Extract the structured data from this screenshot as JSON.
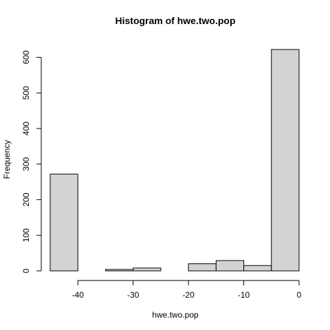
{
  "chart_data": {
    "type": "bar",
    "title": "Histogram of hwe.two.pop",
    "xlabel": "hwe.two.pop",
    "ylabel": "Frequency",
    "bins": [
      {
        "x0": -45,
        "x1": -40,
        "count": 272
      },
      {
        "x0": -40,
        "x1": -35,
        "count": 0
      },
      {
        "x0": -35,
        "x1": -30,
        "count": 4
      },
      {
        "x0": -30,
        "x1": -25,
        "count": 8
      },
      {
        "x0": -25,
        "x1": -20,
        "count": 0
      },
      {
        "x0": -20,
        "x1": -15,
        "count": 20
      },
      {
        "x0": -15,
        "x1": -10,
        "count": 29
      },
      {
        "x0": -10,
        "x1": -5,
        "count": 15
      },
      {
        "x0": -5,
        "x1": 0,
        "count": 622
      }
    ],
    "xticks": [
      -40,
      -30,
      -20,
      -10,
      0
    ],
    "yticks": [
      0,
      100,
      200,
      300,
      400,
      500,
      600
    ],
    "xlim": [
      -45,
      0
    ],
    "ylim": [
      0,
      622
    ],
    "grid": false,
    "bar_color": "#d3d3d3"
  }
}
